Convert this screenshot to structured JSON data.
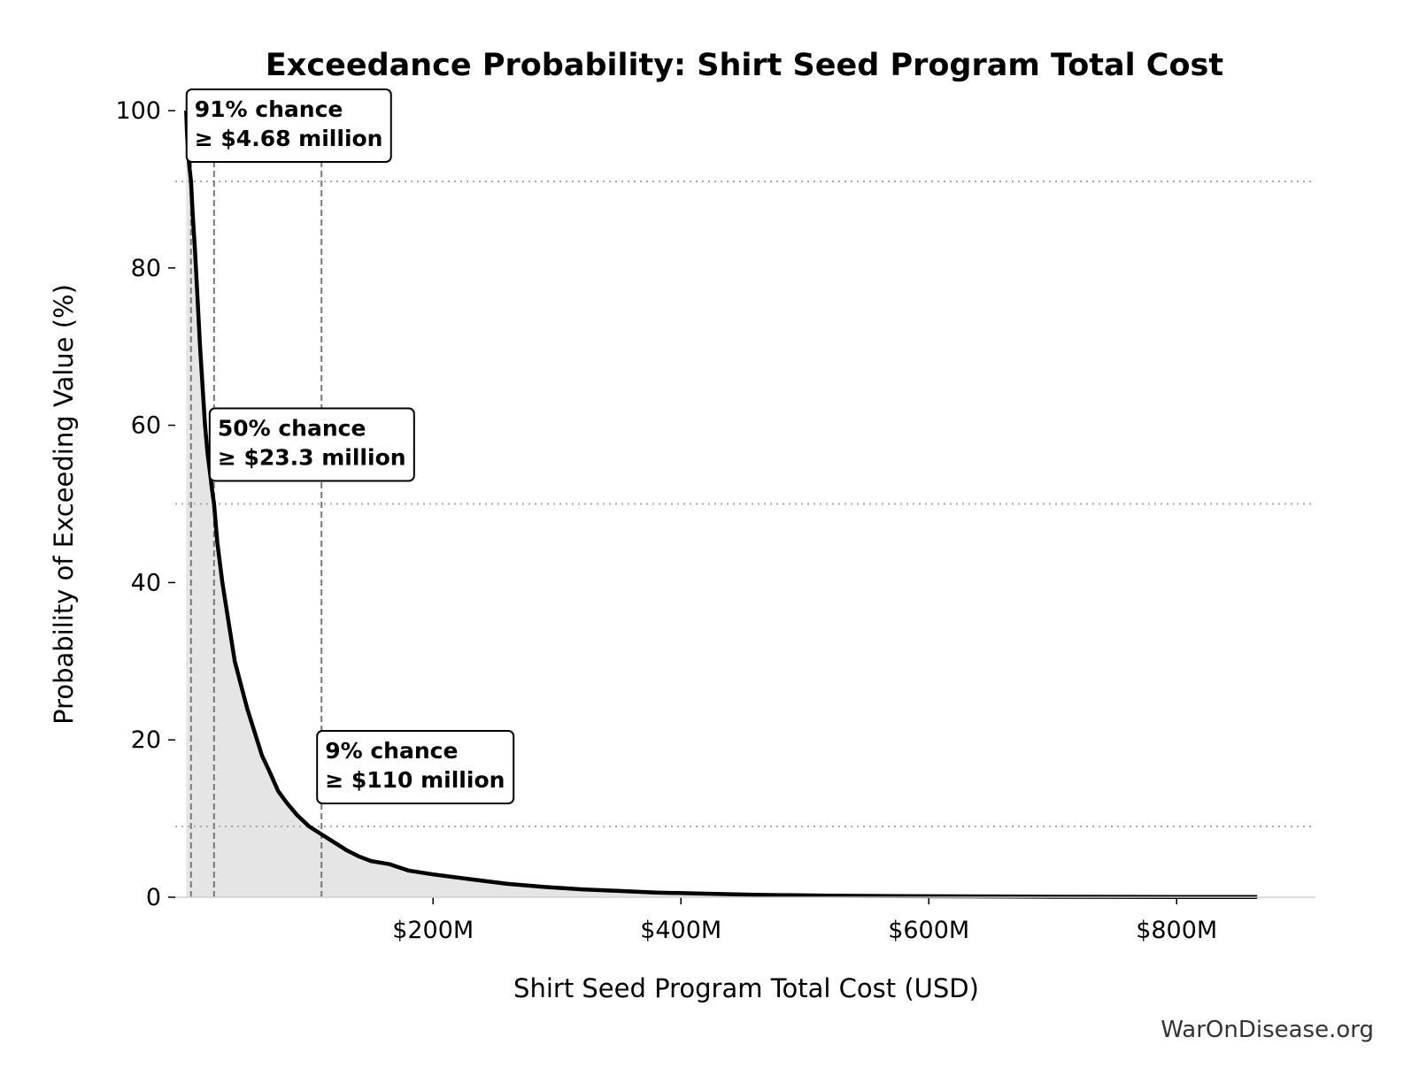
{
  "chart_data": {
    "type": "area",
    "title": "Exceedance Probability: Shirt Seed Program Total Cost",
    "xlabel": "Shirt Seed Program Total Cost (USD)",
    "ylabel": "Probability of Exceeding Value (%)",
    "xlim": [
      -8,
      912
    ],
    "ylim": [
      0,
      100
    ],
    "x_unit": "USD millions",
    "xticks": [
      {
        "value": 200,
        "label": "$200M"
      },
      {
        "value": 400,
        "label": "$400M"
      },
      {
        "value": 600,
        "label": "$600M"
      },
      {
        "value": 800,
        "label": "$800M"
      }
    ],
    "yticks": [
      {
        "value": 0,
        "label": "0"
      },
      {
        "value": 20,
        "label": "20"
      },
      {
        "value": 40,
        "label": "40"
      },
      {
        "value": 60,
        "label": "60"
      },
      {
        "value": 80,
        "label": "80"
      },
      {
        "value": 100,
        "label": "100"
      }
    ],
    "series": [
      {
        "x": [
          0.8,
          1.5,
          2.3,
          3.3,
          4.68,
          6,
          8,
          10,
          12,
          14,
          16,
          18,
          20,
          21.5,
          23.3,
          26,
          30,
          35,
          40,
          45,
          50,
          56,
          62,
          68,
          75,
          82,
          90,
          100,
          110,
          120,
          130,
          140,
          150,
          165,
          180,
          200,
          230,
          260,
          290,
          320,
          350,
          380,
          420,
          460,
          520,
          600,
          700,
          800,
          865
        ],
        "y": [
          100,
          97,
          95,
          93,
          91,
          87,
          82,
          76,
          70,
          65,
          60,
          56.5,
          54,
          52,
          50,
          45,
          40,
          35,
          30,
          27,
          24,
          21,
          18,
          16,
          13.5,
          12,
          10.5,
          9,
          8,
          7,
          6,
          5.2,
          4.6,
          4.2,
          3.4,
          2.9,
          2.3,
          1.7,
          1.3,
          1.0,
          0.8,
          0.6,
          0.45,
          0.3,
          0.2,
          0.12,
          0.06,
          0.03,
          0.02
        ]
      }
    ],
    "annotations": [
      {
        "x": 4.68,
        "y": 91,
        "line1": "91% chance",
        "line2": "≥ $4.68 million"
      },
      {
        "x": 23.3,
        "y": 50,
        "line1": "50% chance",
        "line2": "≥ $23.3 million"
      },
      {
        "x": 110,
        "y": 9,
        "line1": "9% chance",
        "line2": "≥ $110 million"
      }
    ],
    "colors": {
      "line": "#000000",
      "fill": "#e5e5e5",
      "ref_line": "#777777",
      "grid": "#aaaaaa"
    }
  },
  "watermark": "WarOnDisease.org"
}
